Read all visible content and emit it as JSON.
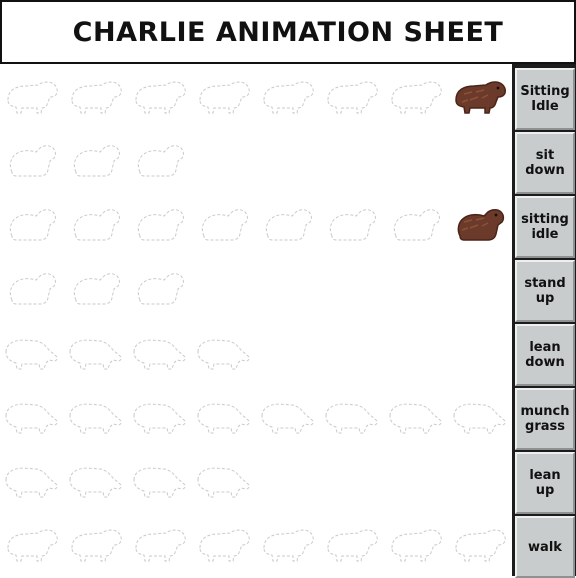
{
  "title": "CHARLIE ANIMATION SHEET",
  "animations": [
    {
      "label": "Sitting\nIdle",
      "frames": 8,
      "filled_frame": 8,
      "pose": "standing"
    },
    {
      "label": "sit\ndown",
      "frames": 3,
      "filled_frame": null,
      "pose": "sitting"
    },
    {
      "label": "sitting\nidle",
      "frames": 8,
      "filled_frame": 8,
      "pose": "sitting"
    },
    {
      "label": "stand\nup",
      "frames": 3,
      "filled_frame": null,
      "pose": "sitting"
    },
    {
      "label": "lean\ndown",
      "frames": 4,
      "filled_frame": null,
      "pose": "leaning"
    },
    {
      "label": "munch\ngrass",
      "frames": 8,
      "filled_frame": null,
      "pose": "leaning"
    },
    {
      "label": "lean\nup",
      "frames": 4,
      "filled_frame": null,
      "pose": "leaning"
    },
    {
      "label": "walk",
      "frames": 8,
      "filled_frame": null,
      "pose": "standing"
    }
  ],
  "colors": {
    "sprite_fur": "#6b3a2a",
    "sprite_shade": "#4a2418",
    "sprite_highlight": "#8c5238",
    "outline_ghost": "#c9c9c9",
    "panel_bg": "#1c1c1c",
    "button_face": "#c9cccd"
  }
}
